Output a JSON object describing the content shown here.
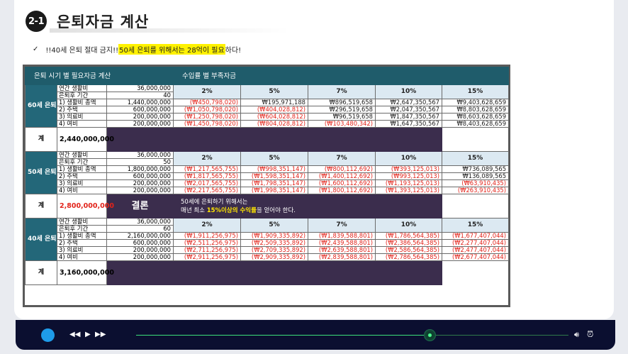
{
  "header": {
    "badge": "2-1",
    "title": "은퇴자금 계산",
    "subtitle_prefix": "!!40세 은퇴 절대 금지!! ",
    "subtitle_highlight": "50세 은퇴를 위해서는 28억이 필요",
    "subtitle_suffix": "하다!"
  },
  "table": {
    "left_header": "은퇴 시기 별 필요자금 계산",
    "right_header": "수입률 별 부족자금",
    "rates": [
      "2%",
      "5%",
      "7%",
      "10%",
      "15%"
    ],
    "row_labels": [
      "연간 생활비",
      "은퇴후 기간",
      "1) 생활비 총액",
      "2) 주택",
      "3) 의료비",
      "4) 여비"
    ],
    "total_label": "계",
    "groups": [
      {
        "name": "60세 은퇴",
        "annual": "36,000,000",
        "years": "40",
        "values": [
          "1,440,000,000",
          "600,000,000",
          "200,000,000",
          "200,000,000"
        ],
        "total": "2,440,000,000",
        "total_red": false,
        "cells": [
          [
            "(₩450,798,020)",
            "₩195,971,188",
            "₩896,519,658",
            "₩2,647,350,567",
            "₩9,403,628,659"
          ],
          [
            "(₩1,050,798,020)",
            "(₩404,028,812)",
            "₩296,519,658",
            "₩2,047,350,567",
            "₩8,803,628,659"
          ],
          [
            "(₩1,250,798,020)",
            "(₩604,028,812)",
            "₩96,519,658",
            "₩1,847,350,567",
            "₩8,603,628,659"
          ],
          [
            "(₩1,450,798,020)",
            "(₩804,028,812)",
            "(₩103,480,342)",
            "₩1,647,350,567",
            "₩8,403,628,659"
          ]
        ]
      },
      {
        "name": "50세 은퇴",
        "annual": "36,000,000",
        "years": "50",
        "values": [
          "1,800,000,000",
          "600,000,000",
          "200,000,000",
          "200,000,000"
        ],
        "total": "2,800,000,000",
        "total_red": true,
        "cells": [
          [
            "(₩1,217,565,755)",
            "(₩998,351,147)",
            "(₩800,112,692)",
            "(₩393,125,013)",
            "₩736,089,565"
          ],
          [
            "(₩1,817,565,755)",
            "(₩1,598,351,147)",
            "(₩1,400,112,692)",
            "(₩993,125,013)",
            "₩136,089,565"
          ],
          [
            "(₩2,017,565,755)",
            "(₩1,798,351,147)",
            "(₩1,600,112,692)",
            "(₩1,193,125,013)",
            "(₩63,910,435)"
          ],
          [
            "(₩2,217,565,755)",
            "(₩1,998,351,147)",
            "(₩1,800,112,692)",
            "(₩1,393,125,013)",
            "(₩263,910,435)"
          ]
        ]
      },
      {
        "name": "40세 은퇴",
        "annual": "36,000,000",
        "years": "60",
        "values": [
          "2,160,000,000",
          "600,000,000",
          "200,000,000",
          "200,000,000"
        ],
        "total": "3,160,000,000",
        "total_red": false,
        "cells": [
          [
            "(₩1,911,256,975)",
            "(₩1,909,335,892)",
            "(₩1,839,588,801)",
            "(₩1,786,564,385)",
            "(₩1,677,407,044)"
          ],
          [
            "(₩2,511,256,975)",
            "(₩2,509,335,892)",
            "(₩2,439,588,801)",
            "(₩2,386,564,385)",
            "(₩2,277,407,044)"
          ],
          [
            "(₩2,711,256,975)",
            "(₩2,709,335,892)",
            "(₩2,639,588,801)",
            "(₩2,586,564,385)",
            "(₩2,477,407,044)"
          ],
          [
            "(₩2,911,256,975)",
            "(₩2,909,335,892)",
            "(₩2,839,588,801)",
            "(₩2,786,564,385)",
            "(₩2,677,407,044)"
          ]
        ]
      }
    ],
    "conclusion": {
      "label": "결론",
      "line1": "50세에 은퇴하기 위해서는",
      "line2_prefix": "매년 최소 ",
      "line2_highlight": "15%이상의 수익률",
      "line2_suffix": "을 얻어야 한다."
    }
  },
  "player": {
    "progress": 0.68,
    "colors": {
      "bar": "#0b0f30",
      "play": "#1e9be9",
      "track": "#3ce07a"
    }
  }
}
